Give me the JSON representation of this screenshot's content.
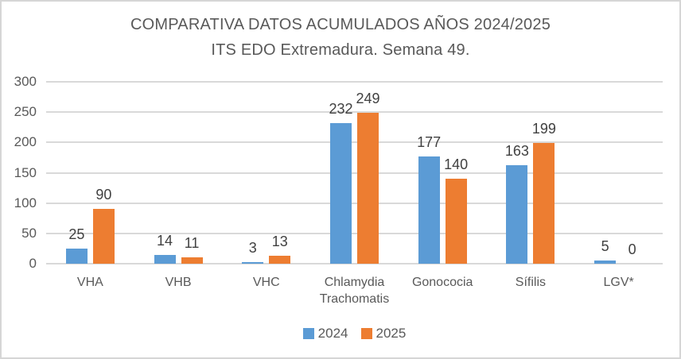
{
  "chart_data": {
    "type": "bar",
    "title": "COMPARATIVA DATOS ACUMULADOS AÑOS 2024/2025",
    "subtitle": "ITS EDO Extremadura. Semana 49.",
    "categories": [
      "VHA",
      "VHB",
      "VHC",
      "Chlamydia Trachomatis",
      "Gonococia",
      "Sífilis",
      "LGV*"
    ],
    "series": [
      {
        "name": "2024",
        "color": "#5B9BD5",
        "values": [
          25,
          14,
          3,
          232,
          177,
          163,
          5
        ]
      },
      {
        "name": "2025",
        "color": "#ED7D31",
        "values": [
          90,
          11,
          13,
          249,
          140,
          199,
          0
        ]
      }
    ],
    "ylim": [
      0,
      300
    ],
    "yticks": [
      0,
      50,
      100,
      150,
      200,
      250,
      300
    ],
    "grid": true,
    "legend_position": "bottom",
    "colors": {
      "grid": "#D9D9D9",
      "axis_text": "#595959",
      "data_label": "#404040",
      "title_text": "#595959",
      "border": "#D6D6D6",
      "background": "#FFFFFF"
    }
  }
}
